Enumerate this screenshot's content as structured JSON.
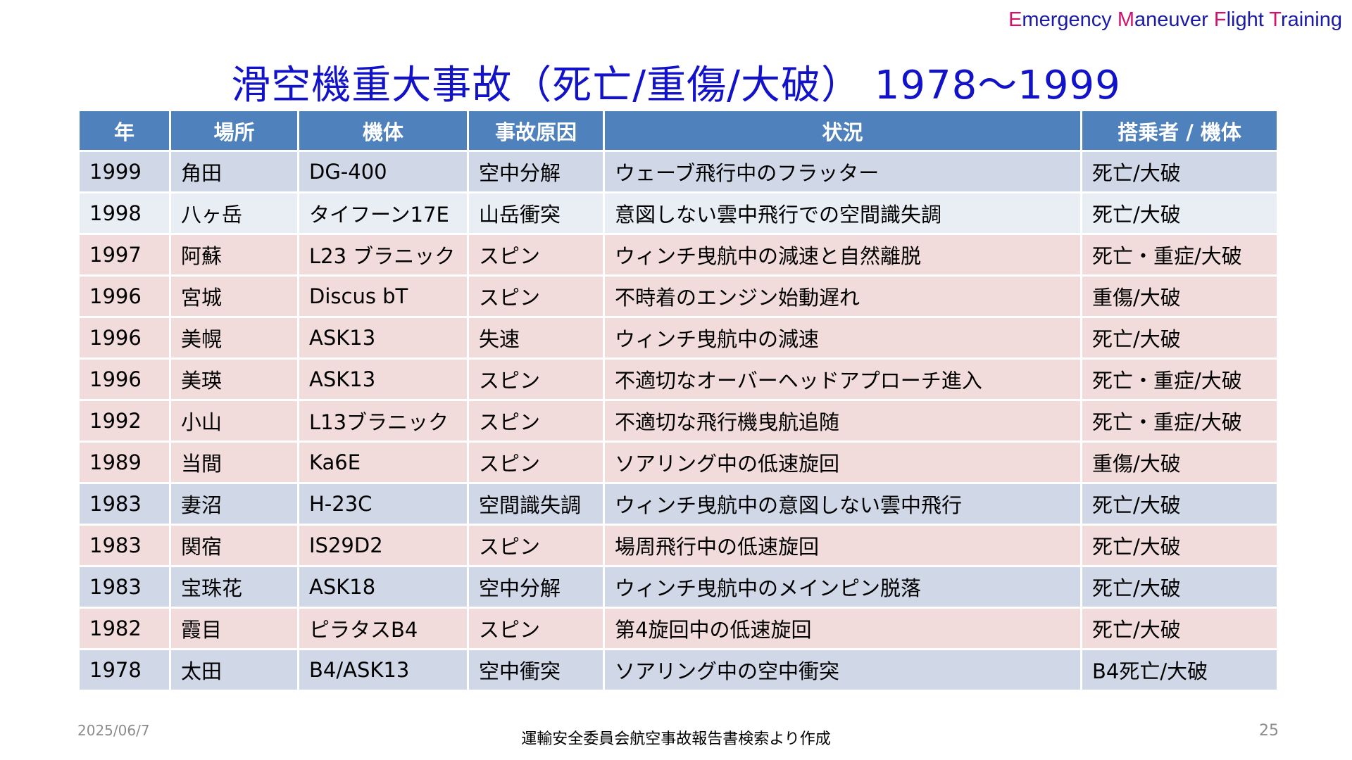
{
  "brand": {
    "e1": "E",
    "r1": "mergency ",
    "e2": "M",
    "r2": "aneuver ",
    "e3": "F",
    "r3": "light ",
    "e4": "T",
    "r4": "raining"
  },
  "title": "滑空機重大事故（死亡/重傷/大破） 1978～1999",
  "table": {
    "headers": [
      "年",
      "場所",
      "機体",
      "事故原因",
      "状況",
      "搭乗者 / 機体"
    ],
    "rows": [
      [
        "1999",
        "角田",
        "DG-400",
        "空中分解",
        "ウェーブ飛行中のフラッター",
        "死亡/大破"
      ],
      [
        "1998",
        "八ヶ岳",
        "タイフーン17E",
        "山岳衝突",
        "意図しない雲中飛行での空間識失調",
        "死亡/大破"
      ],
      [
        "1997",
        "阿蘇",
        "L23 ブラニック",
        "スピン",
        "ウィンチ曳航中の減速と自然離脱",
        "死亡・重症/大破"
      ],
      [
        "1996",
        "宮城",
        "Discus bT",
        "スピン",
        "不時着のエンジン始動遅れ",
        "重傷/大破"
      ],
      [
        "1996",
        "美幌",
        "ASK13",
        "失速",
        "ウィンチ曳航中の減速",
        "死亡/大破"
      ],
      [
        "1996",
        "美瑛",
        "ASK13",
        "スピン",
        "不適切なオーバーヘッドアプローチ進入",
        "死亡・重症/大破"
      ],
      [
        "1992",
        "小山",
        "L13ブラニック",
        "スピン",
        "不適切な飛行機曳航追随",
        "死亡・重症/大破"
      ],
      [
        "1989",
        "当間",
        "Ka6E",
        "スピン",
        "ソアリング中の低速旋回",
        "重傷/大破"
      ],
      [
        "1983",
        "妻沼",
        "H-23C",
        "空間識失調",
        "ウィンチ曳航中の意図しない雲中飛行",
        "死亡/大破"
      ],
      [
        "1983",
        "関宿",
        "IS29D2",
        "スピン",
        "場周飛行中の低速旋回",
        "死亡/大破"
      ],
      [
        "1983",
        "宝珠花",
        "ASK18",
        "空中分解",
        "ウィンチ曳航中のメインピン脱落",
        "死亡/大破"
      ],
      [
        "1982",
        "霞目",
        "ピラタスB4",
        "スピン",
        "第4旋回中の低速旋回",
        "死亡/大破"
      ],
      [
        "1978",
        "太田",
        "B4/ASK13",
        "空中衝突",
        "ソアリング中の空中衝突",
        "B4死亡/大破"
      ]
    ]
  },
  "footer": {
    "date": "2025/06/7",
    "source": "運輸安全委員会航空事故報告書検索より作成",
    "page": "25"
  }
}
